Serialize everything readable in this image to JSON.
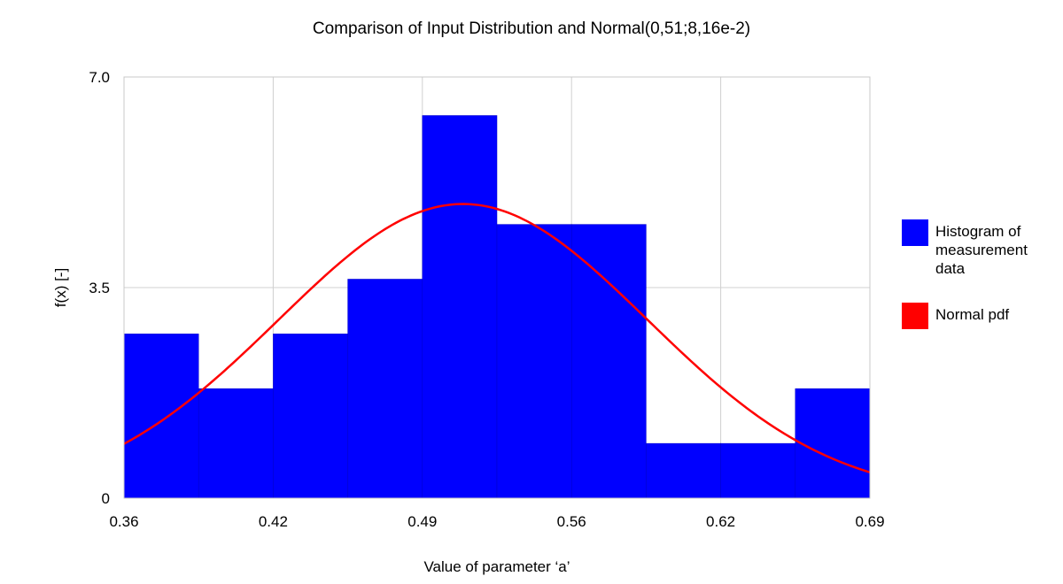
{
  "chart_data": {
    "type": "bar",
    "title": "Comparison of Input Distribution and Normal(0,51;8,16e-2)",
    "xlabel": "Value of parameter ‘a’",
    "ylabel": "f(x) [-]",
    "xlim": [
      0.36,
      0.69
    ],
    "ylim": [
      0,
      7.0
    ],
    "x_ticks": [
      "0.36",
      "0.42",
      "0.49",
      "0.56",
      "0.62",
      "0.69"
    ],
    "y_ticks": [
      "0",
      "3.5",
      "7.0"
    ],
    "grid": true,
    "legend_position": "right",
    "series": [
      {
        "name": "Histogram of measurement data",
        "kind": "histogram",
        "color": "#0000ff",
        "bin_edges": [
          0.36,
          0.393,
          0.426,
          0.459,
          0.492,
          0.525,
          0.558,
          0.591,
          0.624,
          0.657,
          0.69
        ],
        "values": [
          2.73,
          1.82,
          2.73,
          3.64,
          6.36,
          4.55,
          4.55,
          0.91,
          0.91,
          1.82
        ]
      },
      {
        "name": "Normal pdf",
        "kind": "line",
        "color": "#ff0000",
        "mean": 0.51,
        "std": 0.0816
      }
    ]
  }
}
